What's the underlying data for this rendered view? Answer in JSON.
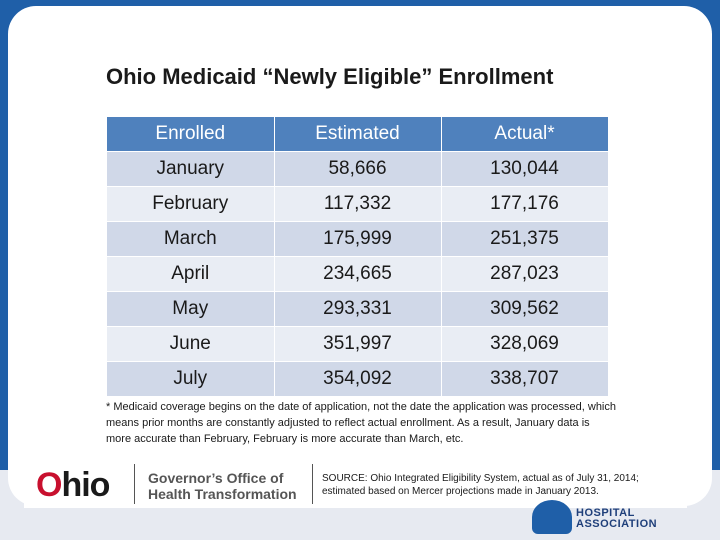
{
  "slide": {
    "title": "Ohio Medicaid “Newly Eligible” Enrollment",
    "table": {
      "headers": [
        "Enrolled",
        "Estimated",
        "Actual*"
      ],
      "rows": [
        [
          "January",
          "58,666",
          "130,044"
        ],
        [
          "February",
          "117,332",
          "177,176"
        ],
        [
          "March",
          "175,999",
          "251,375"
        ],
        [
          "April",
          "234,665",
          "287,023"
        ],
        [
          "May",
          "293,331",
          "309,562"
        ],
        [
          "June",
          "351,997",
          "328,069"
        ],
        [
          "July",
          "354,092",
          "338,707"
        ]
      ]
    },
    "footnote": "* Medicaid coverage begins on the date of application, not the date the application was processed, which means prior months are constantly adjusted to reflect actual enrollment. As a result, January data is more accurate than February, February is more accurate than March, etc.",
    "footer": {
      "logo_text": "Ohio",
      "office_line1": "Governor’s Office of",
      "office_line2": "Health Transformation",
      "source_text": "SOURCE: Ohio Integrated Eligibility System, actual as of July 31, 2014; estimated based on Mercer projections made in January 2013."
    }
  },
  "association_logo": {
    "line1": "HOSPITAL",
    "line2": "ASSOCIATION"
  },
  "colors": {
    "header_blue": "#4f81bd",
    "row_odd": "#d0d8e8",
    "row_even": "#e9edf4",
    "logo_red": "#c8102e",
    "background_blue": "#1f5fa8"
  }
}
